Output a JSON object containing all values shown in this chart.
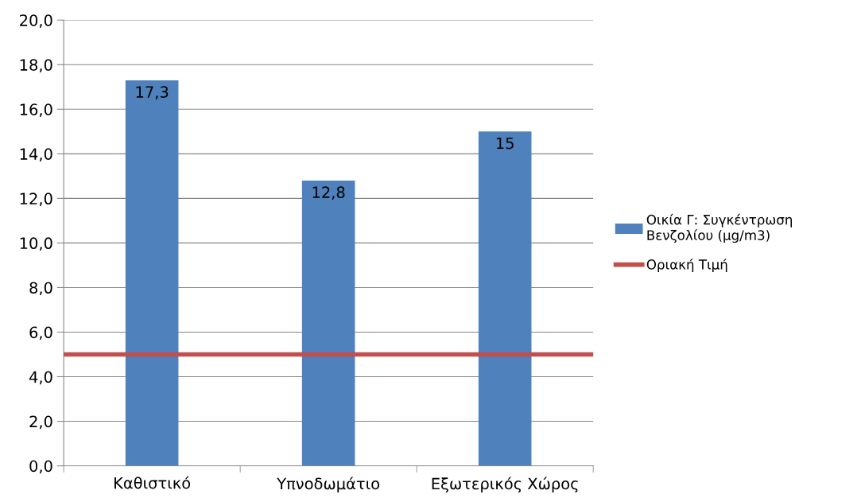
{
  "chart_data": {
    "type": "bar",
    "categories": [
      "Καθιστικό",
      "Υπνοδωμάτιο",
      "Εξωτερικός Χώρος"
    ],
    "series": [
      {
        "name": "Οικία Γ: Συγκέντρωση Βενζολίου (μg/m3)",
        "color": "#4f81bd",
        "values": [
          17.3,
          12.8,
          15
        ],
        "value_labels": [
          "17,3",
          "12,8",
          "15"
        ]
      }
    ],
    "ylim": [
      0,
      20
    ],
    "yticks": [
      {
        "value": 0,
        "label": "0,0"
      },
      {
        "value": 2,
        "label": "2,0"
      },
      {
        "value": 4,
        "label": "4,0"
      },
      {
        "value": 6,
        "label": "6,0"
      },
      {
        "value": 8,
        "label": "8,0"
      },
      {
        "value": 10,
        "label": "10,0"
      },
      {
        "value": 12,
        "label": "12,0"
      },
      {
        "value": 14,
        "label": "14,0"
      },
      {
        "value": 16,
        "label": "16,0"
      },
      {
        "value": 18,
        "label": "18,0"
      },
      {
        "value": 20,
        "label": "20,0"
      }
    ],
    "ref_lines": [
      {
        "axis": "y",
        "value": 5,
        "label": "Οριακή Τιμή",
        "color": "#c0504d",
        "line_style": "solid"
      }
    ],
    "grid": "y",
    "legend": "right"
  }
}
